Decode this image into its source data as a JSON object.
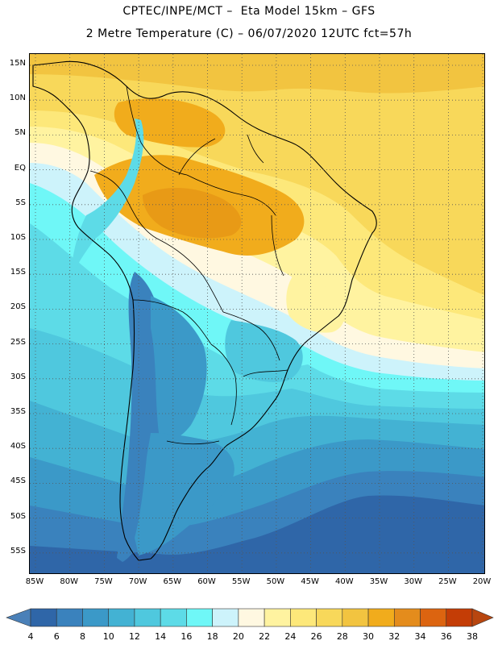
{
  "title_line1": "CPTEC/INPE/MCT –  Eta Model 15km – GFS",
  "title_line2": "2 Metre Temperature (C) – 06/07/2020 12UTC fct=57h",
  "lat_labels": [
    "15N",
    "10N",
    "5N",
    "EQ",
    "5S",
    "10S",
    "15S",
    "20S",
    "25S",
    "30S",
    "35S",
    "40S",
    "45S",
    "50S",
    "55S"
  ],
  "lon_labels": [
    "85W",
    "80W",
    "75W",
    "70W",
    "65W",
    "60W",
    "55W",
    "50W",
    "45W",
    "40W",
    "35W",
    "30W",
    "25W",
    "20W"
  ],
  "colorbar": {
    "ticks": [
      "4",
      "6",
      "8",
      "10",
      "12",
      "14",
      "16",
      "18",
      "20",
      "22",
      "24",
      "26",
      "28",
      "30",
      "32",
      "34",
      "36",
      "38"
    ],
    "colors": [
      "#2f66a8",
      "#3a82bd",
      "#3b99c8",
      "#43b2d3",
      "#4fc8de",
      "#5ddbe7",
      "#6ff7f7",
      "#cdf3fb",
      "#fff8e1",
      "#fff3a0",
      "#fde87a",
      "#f8d85a",
      "#f2c440",
      "#f1ac1c",
      "#e48c1c",
      "#dc6410",
      "#c43d06"
    ],
    "low_color": "#4a80b8",
    "high_color": "#b8460f"
  }
}
